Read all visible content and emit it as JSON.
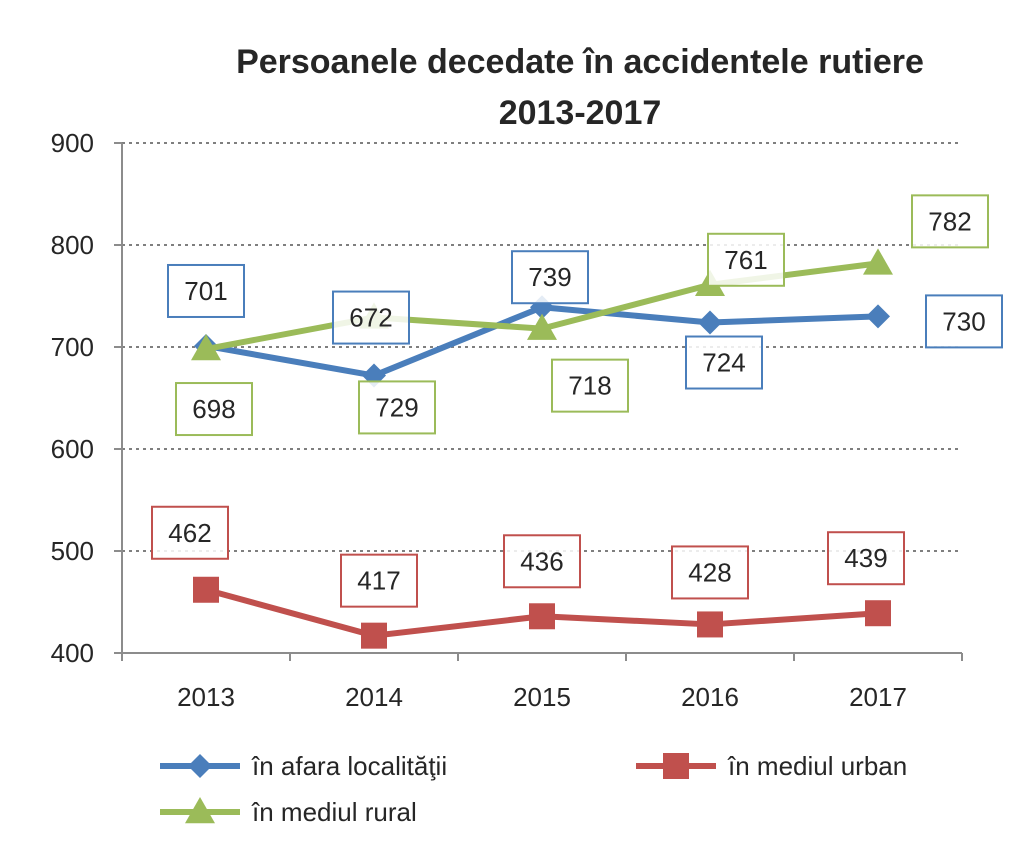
{
  "chart_data": {
    "type": "line",
    "title_lines": [
      "Persoanele decedate în accidentele rutiere",
      "2013-2017"
    ],
    "categories": [
      "2013",
      "2014",
      "2015",
      "2016",
      "2017"
    ],
    "ylim": [
      400,
      900
    ],
    "yticks": [
      400,
      500,
      600,
      700,
      800,
      900
    ],
    "grid": true,
    "legend_position": "bottom",
    "series": [
      {
        "name": "în afara localităţii",
        "marker": "diamond",
        "color": "#4a7ebb",
        "values": [
          701,
          672,
          739,
          724,
          730
        ]
      },
      {
        "name": "în mediul urban",
        "marker": "square",
        "color": "#c0504d",
        "values": [
          462,
          417,
          436,
          428,
          439
        ]
      },
      {
        "name": "în mediul rural",
        "marker": "triangle",
        "color": "#9bbb59",
        "values": [
          698,
          729,
          718,
          761,
          782
        ]
      }
    ]
  }
}
